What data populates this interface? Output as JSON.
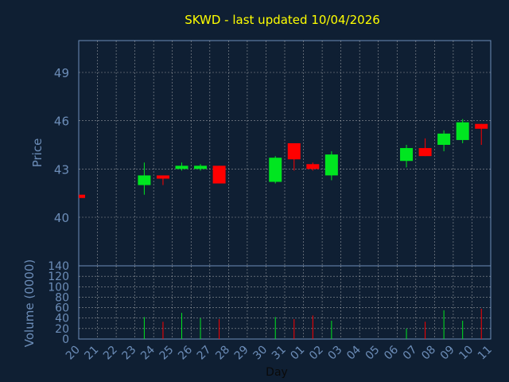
{
  "chart_data": {
    "type": "candlestick",
    "title": "SKWD - last updated 10/04/2026",
    "price_panel": {
      "ylabel": "Price",
      "ylim": [
        37,
        41
      ],
      "yticks": [
        40,
        43,
        46,
        49
      ],
      "ylim_full": [
        37,
        52
      ]
    },
    "volume_panel": {
      "ylabel": "Volume (0000)",
      "ylim": [
        0,
        140
      ],
      "yticks": [
        0,
        20,
        40,
        60,
        80,
        100,
        120,
        140
      ]
    },
    "xlabel": "Day",
    "x_ticks": [
      "20",
      "21",
      "22",
      "23",
      "24",
      "25",
      "26",
      "27",
      "28",
      "29",
      "30",
      "31",
      "01",
      "02",
      "03",
      "04",
      "05",
      "06",
      "07",
      "08",
      "09",
      "10",
      "11"
    ],
    "candles": [
      {
        "day": "20",
        "open": 41.4,
        "high": 41.4,
        "low": 41.2,
        "close": 41.2,
        "volume": 0
      },
      {
        "day": "23",
        "open": 42.0,
        "high": 43.4,
        "low": 41.4,
        "close": 42.6,
        "volume": 42
      },
      {
        "day": "24",
        "open": 42.6,
        "high": 42.6,
        "low": 42.0,
        "close": 42.4,
        "volume": 33
      },
      {
        "day": "25",
        "open": 43.0,
        "high": 43.4,
        "low": 42.9,
        "close": 43.2,
        "volume": 50
      },
      {
        "day": "26",
        "open": 43.0,
        "high": 43.3,
        "low": 42.9,
        "close": 43.2,
        "volume": 40
      },
      {
        "day": "27",
        "open": 43.2,
        "high": 43.2,
        "low": 42.1,
        "close": 42.1,
        "volume": 38
      },
      {
        "day": "30",
        "open": 42.2,
        "high": 43.8,
        "low": 42.1,
        "close": 43.7,
        "volume": 42
      },
      {
        "day": "31",
        "open": 44.6,
        "high": 44.6,
        "low": 42.9,
        "close": 43.6,
        "volume": 38
      },
      {
        "day": "01",
        "open": 43.3,
        "high": 43.4,
        "low": 42.9,
        "close": 43.0,
        "volume": 45
      },
      {
        "day": "02",
        "open": 42.6,
        "high": 44.1,
        "low": 42.3,
        "close": 43.9,
        "volume": 35
      },
      {
        "day": "06",
        "open": 43.5,
        "high": 44.5,
        "low": 43.1,
        "close": 44.3,
        "volume": 20
      },
      {
        "day": "07",
        "open": 44.3,
        "high": 44.9,
        "low": 43.8,
        "close": 43.8,
        "volume": 33
      },
      {
        "day": "08",
        "open": 44.5,
        "high": 45.4,
        "low": 44.1,
        "close": 45.2,
        "volume": 55
      },
      {
        "day": "09",
        "open": 44.8,
        "high": 46.1,
        "low": 44.6,
        "close": 45.9,
        "volume": 35
      },
      {
        "day": "10",
        "open": 45.8,
        "high": 45.8,
        "low": 44.5,
        "close": 45.5,
        "volume": 58
      }
    ],
    "colors": {
      "background": "#0f1f33",
      "up": "#00e620",
      "down": "#ff0000",
      "axis": "#6c8db8",
      "title": "#ffff00",
      "label": "#6c8db8",
      "grid": "#c8c8c8"
    },
    "grid": true
  }
}
